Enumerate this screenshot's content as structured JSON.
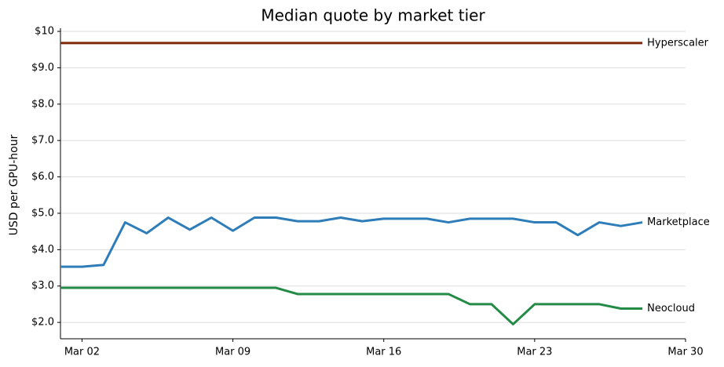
{
  "chart_data": {
    "type": "line",
    "title": "Median quote by market tier",
    "y_label": "USD per GPU-hour",
    "x": [
      "Mar 01",
      "Mar 02",
      "Mar 03",
      "Mar 04",
      "Mar 05",
      "Mar 06",
      "Mar 07",
      "Mar 08",
      "Mar 09",
      "Mar 10",
      "Mar 11",
      "Mar 12",
      "Mar 13",
      "Mar 14",
      "Mar 15",
      "Mar 16",
      "Mar 17",
      "Mar 18",
      "Mar 19",
      "Mar 20",
      "Mar 21",
      "Mar 22",
      "Mar 23",
      "Mar 24",
      "Mar 25",
      "Mar 26",
      "Mar 27",
      "Mar 28"
    ],
    "xlim": [
      "Mar 01",
      "Mar 30"
    ],
    "xticks": [
      "Mar 02",
      "Mar 09",
      "Mar 16",
      "Mar 23",
      "Mar 30"
    ],
    "ylim": [
      1.55,
      10
    ],
    "yticks": [
      {
        "value": 2,
        "label": "$2.0"
      },
      {
        "value": 3,
        "label": "$3.0"
      },
      {
        "value": 4,
        "label": "$4.0"
      },
      {
        "value": 5,
        "label": "$5.0"
      },
      {
        "value": 6,
        "label": "$6.0"
      },
      {
        "value": 7,
        "label": "$7.0"
      },
      {
        "value": 8,
        "label": "$8.0"
      },
      {
        "value": 9,
        "label": "$9.0"
      },
      {
        "value": 10,
        "label": "$10"
      }
    ],
    "grid": true,
    "series": [
      {
        "name": "Hyperscaler",
        "color": "#7f2704",
        "values": [
          9.68,
          9.68,
          9.68,
          9.68,
          9.68,
          9.68,
          9.68,
          9.68,
          9.68,
          9.68,
          9.68,
          9.68,
          9.68,
          9.68,
          9.68,
          9.68,
          9.68,
          9.68,
          9.68,
          9.68,
          9.68,
          9.68,
          9.68,
          9.68,
          9.68,
          9.68,
          9.68,
          9.68
        ]
      },
      {
        "name": "Marketplace",
        "color": "#2f7db8",
        "values": [
          3.53,
          3.53,
          3.58,
          4.75,
          4.45,
          4.88,
          4.55,
          4.88,
          4.52,
          4.88,
          4.88,
          4.78,
          4.78,
          4.88,
          4.78,
          4.85,
          4.85,
          4.85,
          4.75,
          4.85,
          4.85,
          4.85,
          4.75,
          4.75,
          4.4,
          4.75,
          4.65,
          4.75
        ]
      },
      {
        "name": "Neocloud",
        "color": "#238b45",
        "values": [
          2.95,
          2.95,
          2.95,
          2.95,
          2.95,
          2.95,
          2.95,
          2.95,
          2.95,
          2.95,
          2.95,
          2.78,
          2.78,
          2.78,
          2.78,
          2.78,
          2.78,
          2.78,
          2.78,
          2.5,
          2.5,
          1.95,
          2.5,
          2.5,
          2.5,
          2.5,
          2.38,
          2.38
        ]
      }
    ]
  }
}
